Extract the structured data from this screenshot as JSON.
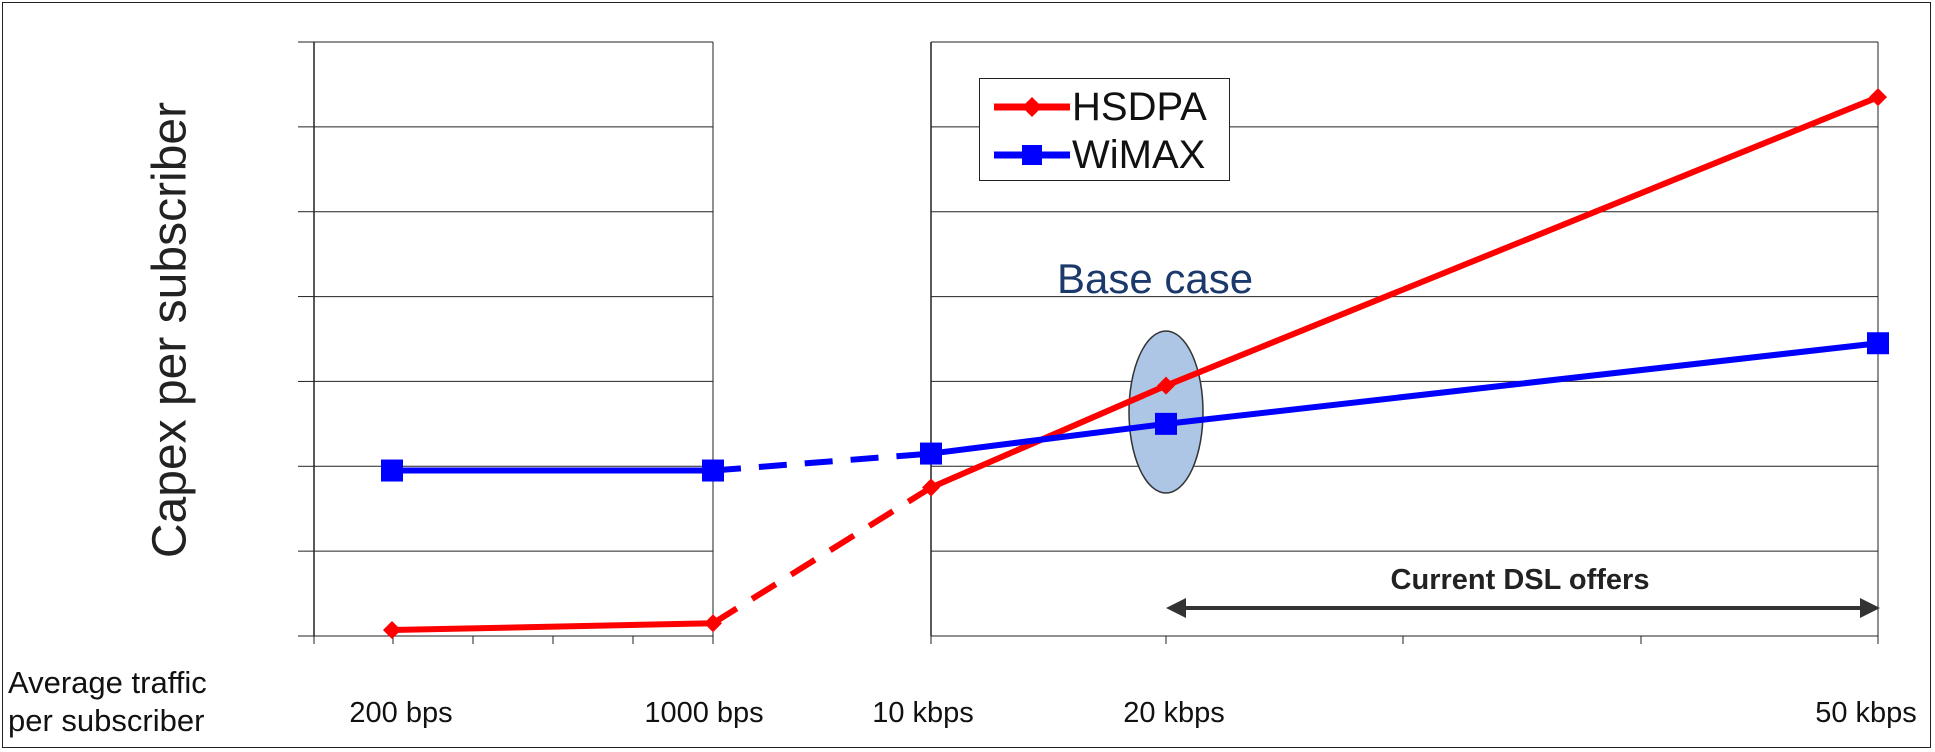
{
  "chart_data": {
    "type": "line",
    "ylabel": "Capex per subscriber",
    "xlabel": "Average traffic\nper subscriber",
    "categories": [
      "200 bps",
      "1000 bps",
      "10 kbps",
      "20 kbps",
      "50 kbps"
    ],
    "ylim": [
      0,
      7
    ],
    "grid": true,
    "legend_position": "top-left of right panel",
    "series": [
      {
        "name": "HSDPA",
        "color": "#ff0000",
        "marker": "diamond",
        "points": [
          {
            "x": "200 bps",
            "y": 0.07
          },
          {
            "x": "1000 bps",
            "y": 0.15
          },
          {
            "x": "10 kbps",
            "y": 1.75
          },
          {
            "x": "20 kbps",
            "y": 2.95
          },
          {
            "x": "50 kbps",
            "y": 6.35
          }
        ]
      },
      {
        "name": "WiMAX",
        "color": "#0000ff",
        "marker": "square",
        "points": [
          {
            "x": "200 bps",
            "y": 1.95
          },
          {
            "x": "1000 bps",
            "y": 1.95
          },
          {
            "x": "10 kbps",
            "y": 2.15
          },
          {
            "x": "20 kbps",
            "y": 2.5
          },
          {
            "x": "50 kbps",
            "y": 3.45
          }
        ]
      }
    ],
    "annotations": [
      {
        "text": "Base case"
      },
      {
        "text": "Current DSL offers"
      }
    ]
  }
}
